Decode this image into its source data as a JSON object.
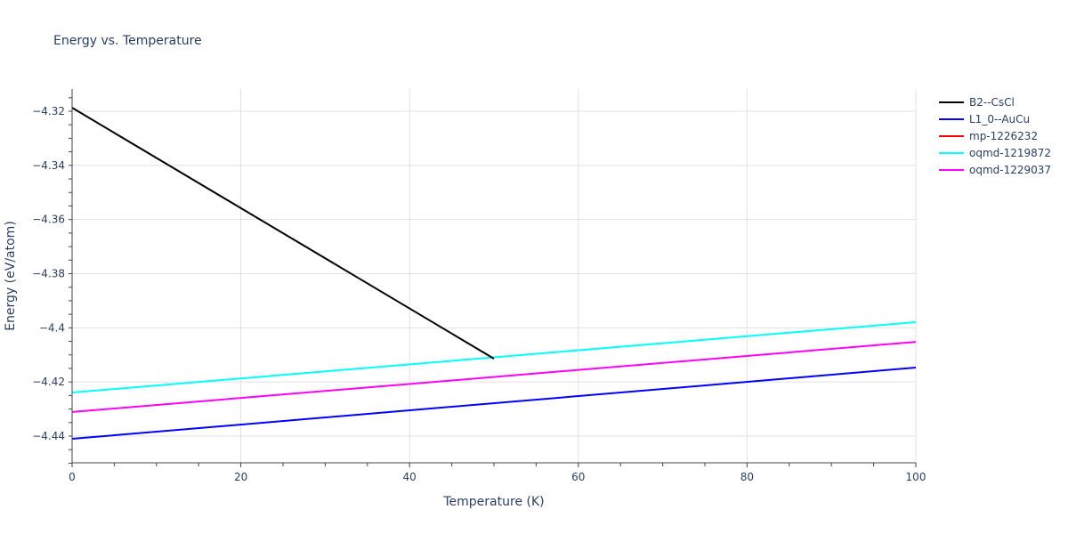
{
  "chart_data": {
    "type": "line",
    "title": "Energy vs. Temperature",
    "xlabel": "Temperature (K)",
    "ylabel": "Energy (eV/atom)",
    "xlim": [
      0,
      100
    ],
    "ylim": [
      -4.45,
      -4.3125
    ],
    "grid": true,
    "legend_position": "right",
    "x_ticks": [
      0,
      20,
      40,
      60,
      80,
      100
    ],
    "x_tick_labels": [
      "0",
      "20",
      "40",
      "60",
      "80",
      "100"
    ],
    "y_ticks": [
      -4.32,
      -4.34,
      -4.36,
      -4.38,
      -4.4,
      -4.42,
      -4.44
    ],
    "y_tick_labels": [
      "−4.32",
      "−4.34",
      "−4.36",
      "−4.38",
      "−4.4",
      "−4.42",
      "−4.44"
    ],
    "series": [
      {
        "name": "B2--CsCl",
        "color": "#000000",
        "x": [
          0,
          50
        ],
        "y": [
          -4.3187,
          -4.4114
        ]
      },
      {
        "name": "L1_0--AuCu",
        "color": "#0000ff",
        "x": [
          0,
          100
        ],
        "y": [
          -4.441,
          -4.4147
        ]
      },
      {
        "name": "mp-1226232",
        "color": "#ff0000",
        "x": [],
        "y": []
      },
      {
        "name": "oqmd-1219872",
        "color": "#00ffff",
        "x": [
          0,
          100
        ],
        "y": [
          -4.4239,
          -4.3979
        ]
      },
      {
        "name": "oqmd-1229037",
        "color": "#ff00ff",
        "x": [
          0,
          100
        ],
        "y": [
          -4.4311,
          -4.4052
        ]
      }
    ]
  }
}
